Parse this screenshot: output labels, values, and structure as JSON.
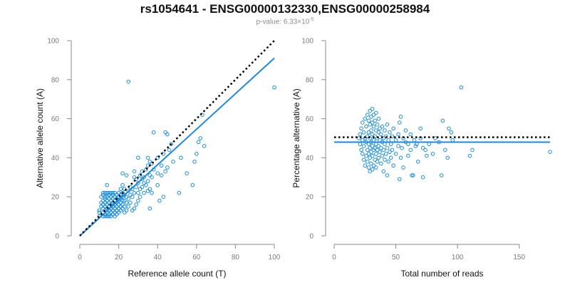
{
  "title": "rs1054641 - ENSG00000132330,ENSG00000258984",
  "subtitle": {
    "prefix": "p-value: 6.33×10",
    "exponent": "-5"
  },
  "colors": {
    "points": "#1b8ed8",
    "fit_line": "#1e88e5",
    "reference_line": "#000000",
    "axis": "#888888",
    "tick_text": "#7a7a7a",
    "label_text": "#111111"
  },
  "chart_data": [
    {
      "type": "scatter",
      "xlabel": "Reference allele count (T)",
      "ylabel": "Alternative allele count (A)",
      "xlim": [
        0,
        100
      ],
      "ylim": [
        0,
        100
      ],
      "xticks": [
        0,
        20,
        40,
        60,
        80,
        100
      ],
      "yticks": [
        0,
        20,
        40,
        60,
        80,
        100
      ],
      "grid": false,
      "lines": [
        {
          "kind": "fit",
          "style": "solid",
          "x": [
            0,
            100
          ],
          "y": [
            0,
            91
          ]
        },
        {
          "kind": "reference",
          "style": "dotted",
          "x": [
            0,
            100
          ],
          "y": [
            0,
            100
          ]
        }
      ],
      "points": [
        [
          10,
          10
        ],
        [
          10,
          12
        ],
        [
          10,
          13
        ],
        [
          11,
          15
        ],
        [
          11,
          17
        ],
        [
          11,
          20
        ],
        [
          12,
          10
        ],
        [
          12,
          12
        ],
        [
          12,
          14
        ],
        [
          12,
          16
        ],
        [
          12,
          18
        ],
        [
          12,
          21
        ],
        [
          12,
          22
        ],
        [
          13,
          10
        ],
        [
          13,
          11
        ],
        [
          13,
          13
        ],
        [
          13,
          15
        ],
        [
          13,
          17
        ],
        [
          13,
          19
        ],
        [
          13,
          20
        ],
        [
          13,
          22
        ],
        [
          14,
          10
        ],
        [
          14,
          12
        ],
        [
          14,
          14
        ],
        [
          14,
          16
        ],
        [
          14,
          18
        ],
        [
          14,
          20
        ],
        [
          14,
          22
        ],
        [
          14,
          26
        ],
        [
          15,
          10
        ],
        [
          15,
          11
        ],
        [
          15,
          13
        ],
        [
          15,
          15
        ],
        [
          15,
          17
        ],
        [
          15,
          19
        ],
        [
          15,
          21
        ],
        [
          15,
          22
        ],
        [
          16,
          10
        ],
        [
          16,
          12
        ],
        [
          16,
          14
        ],
        [
          16,
          16
        ],
        [
          16,
          18
        ],
        [
          16,
          20
        ],
        [
          16,
          22
        ],
        [
          17,
          11
        ],
        [
          17,
          13
        ],
        [
          17,
          15
        ],
        [
          17,
          17
        ],
        [
          17,
          19
        ],
        [
          17,
          21
        ],
        [
          17,
          22
        ],
        [
          18,
          10
        ],
        [
          18,
          12
        ],
        [
          18,
          14
        ],
        [
          18,
          16
        ],
        [
          18,
          18
        ],
        [
          18,
          20
        ],
        [
          18,
          22
        ],
        [
          19,
          11
        ],
        [
          19,
          13
        ],
        [
          19,
          15
        ],
        [
          19,
          17
        ],
        [
          19,
          19
        ],
        [
          19,
          21
        ],
        [
          20,
          12
        ],
        [
          20,
          14
        ],
        [
          20,
          16
        ],
        [
          20,
          18
        ],
        [
          20,
          20
        ],
        [
          20,
          22
        ],
        [
          21,
          13
        ],
        [
          21,
          15
        ],
        [
          21,
          17
        ],
        [
          21,
          19
        ],
        [
          21,
          21
        ],
        [
          21,
          24
        ],
        [
          22,
          14
        ],
        [
          22,
          16
        ],
        [
          22,
          18
        ],
        [
          22,
          20
        ],
        [
          22,
          22
        ],
        [
          22,
          26
        ],
        [
          22,
          32
        ],
        [
          23,
          12
        ],
        [
          23,
          15
        ],
        [
          23,
          18
        ],
        [
          23,
          21
        ],
        [
          23,
          24
        ],
        [
          24,
          13
        ],
        [
          24,
          17
        ],
        [
          24,
          20
        ],
        [
          24,
          31
        ],
        [
          25,
          15
        ],
        [
          25,
          19
        ],
        [
          25,
          23
        ],
        [
          25,
          79
        ],
        [
          26,
          17
        ],
        [
          26,
          21
        ],
        [
          26,
          25
        ],
        [
          27,
          13
        ],
        [
          27,
          20
        ],
        [
          27,
          24
        ],
        [
          28,
          14
        ],
        [
          28,
          22
        ],
        [
          28,
          30
        ],
        [
          28,
          33
        ],
        [
          29,
          16
        ],
        [
          29,
          25
        ],
        [
          29,
          29
        ],
        [
          30,
          18
        ],
        [
          30,
          22
        ],
        [
          30,
          27
        ],
        [
          30,
          40
        ],
        [
          31,
          20
        ],
        [
          31,
          24
        ],
        [
          31,
          31
        ],
        [
          32,
          25
        ],
        [
          32,
          29
        ],
        [
          32,
          33
        ],
        [
          33,
          22
        ],
        [
          33,
          27
        ],
        [
          33,
          30
        ],
        [
          34,
          26
        ],
        [
          34,
          34
        ],
        [
          35,
          23
        ],
        [
          35,
          28
        ],
        [
          35,
          36
        ],
        [
          35,
          40
        ],
        [
          36,
          14
        ],
        [
          36,
          24
        ],
        [
          36,
          31
        ],
        [
          36,
          38
        ],
        [
          37,
          22
        ],
        [
          37,
          30
        ],
        [
          37,
          37
        ],
        [
          38,
          34
        ],
        [
          38,
          53
        ],
        [
          40,
          26
        ],
        [
          40,
          32
        ],
        [
          40,
          40
        ],
        [
          41,
          18
        ],
        [
          42,
          31
        ],
        [
          42,
          36
        ],
        [
          43,
          20
        ],
        [
          43,
          42
        ],
        [
          44,
          33
        ],
        [
          44,
          53
        ],
        [
          45,
          35
        ],
        [
          45,
          52
        ],
        [
          46,
          44
        ],
        [
          47,
          47
        ],
        [
          48,
          38
        ],
        [
          51,
          22
        ],
        [
          52,
          40
        ],
        [
          55,
          32
        ],
        [
          58,
          26
        ],
        [
          59,
          38
        ],
        [
          60,
          42
        ],
        [
          61,
          48
        ],
        [
          62,
          50
        ],
        [
          63,
          62
        ],
        [
          64,
          46
        ],
        [
          100,
          76
        ]
      ]
    },
    {
      "type": "scatter",
      "xlabel": "Total number of reads",
      "ylabel": "Percentage alternative (A)",
      "xlim": [
        0,
        175
      ],
      "ylim": [
        0,
        100
      ],
      "xticks": [
        0,
        50,
        100,
        150
      ],
      "yticks": [
        0,
        20,
        40,
        60,
        80,
        100
      ],
      "grid": false,
      "lines": [
        {
          "kind": "fit",
          "style": "solid",
          "x": [
            0,
            175
          ],
          "y": [
            48,
            48
          ]
        },
        {
          "kind": "reference",
          "style": "dotted",
          "x": [
            0,
            175
          ],
          "y": [
            50.5,
            50.5
          ]
        }
      ],
      "points": [
        [
          20,
          50
        ],
        [
          21,
          47
        ],
        [
          21,
          52
        ],
        [
          22,
          44
        ],
        [
          22,
          55
        ],
        [
          23,
          42
        ],
        [
          23,
          49
        ],
        [
          23,
          58
        ],
        [
          24,
          39
        ],
        [
          24,
          46
        ],
        [
          24,
          53
        ],
        [
          25,
          36
        ],
        [
          25,
          50
        ],
        [
          25,
          60
        ],
        [
          26,
          41
        ],
        [
          26,
          48
        ],
        [
          26,
          56
        ],
        [
          27,
          38
        ],
        [
          27,
          44
        ],
        [
          27,
          51
        ],
        [
          27,
          62
        ],
        [
          28,
          35
        ],
        [
          28,
          42
        ],
        [
          28,
          47
        ],
        [
          28,
          53
        ],
        [
          28,
          59
        ],
        [
          29,
          33
        ],
        [
          29,
          40
        ],
        [
          29,
          45
        ],
        [
          29,
          50
        ],
        [
          29,
          57
        ],
        [
          29,
          64
        ],
        [
          30,
          37
        ],
        [
          30,
          43
        ],
        [
          30,
          48
        ],
        [
          30,
          54
        ],
        [
          30,
          61
        ],
        [
          31,
          34
        ],
        [
          31,
          41
        ],
        [
          31,
          46
        ],
        [
          31,
          52
        ],
        [
          31,
          58
        ],
        [
          31,
          65
        ],
        [
          32,
          36
        ],
        [
          32,
          44
        ],
        [
          32,
          49
        ],
        [
          32,
          56
        ],
        [
          32,
          62
        ],
        [
          33,
          39
        ],
        [
          33,
          45
        ],
        [
          33,
          51
        ],
        [
          33,
          59
        ],
        [
          34,
          35
        ],
        [
          34,
          42
        ],
        [
          34,
          47
        ],
        [
          34,
          54
        ],
        [
          34,
          63
        ],
        [
          35,
          38
        ],
        [
          35,
          44
        ],
        [
          35,
          50
        ],
        [
          35,
          57
        ],
        [
          36,
          40
        ],
        [
          36,
          46
        ],
        [
          36,
          53
        ],
        [
          36,
          60
        ],
        [
          37,
          43
        ],
        [
          37,
          49
        ],
        [
          37,
          55
        ],
        [
          38,
          37
        ],
        [
          38,
          45
        ],
        [
          38,
          52
        ],
        [
          39,
          41
        ],
        [
          39,
          48
        ],
        [
          39,
          56
        ],
        [
          40,
          33
        ],
        [
          40,
          44
        ],
        [
          40,
          50
        ],
        [
          41,
          39
        ],
        [
          41,
          47
        ],
        [
          41,
          54
        ],
        [
          42,
          42
        ],
        [
          42,
          51
        ],
        [
          43,
          31
        ],
        [
          43,
          45
        ],
        [
          43,
          57
        ],
        [
          44,
          38
        ],
        [
          44,
          49
        ],
        [
          45,
          43
        ],
        [
          45,
          53
        ],
        [
          46,
          40
        ],
        [
          46,
          47
        ],
        [
          47,
          44
        ],
        [
          47,
          51
        ],
        [
          48,
          36
        ],
        [
          48,
          55
        ],
        [
          50,
          42
        ],
        [
          50,
          49
        ],
        [
          52,
          46
        ],
        [
          52,
          52
        ],
        [
          53,
          29
        ],
        [
          53,
          58
        ],
        [
          54,
          40
        ],
        [
          54,
          61
        ],
        [
          55,
          45
        ],
        [
          56,
          35
        ],
        [
          56,
          50
        ],
        [
          58,
          48
        ],
        [
          58,
          54
        ],
        [
          60,
          41
        ],
        [
          60,
          47
        ],
        [
          62,
          44
        ],
        [
          62,
          52
        ],
        [
          63,
          31
        ],
        [
          64,
          31
        ],
        [
          65,
          49
        ],
        [
          66,
          46
        ],
        [
          67,
          47
        ],
        [
          68,
          38
        ],
        [
          70,
          50
        ],
        [
          70,
          55
        ],
        [
          72,
          30
        ],
        [
          72,
          45
        ],
        [
          74,
          44
        ],
        [
          75,
          41
        ],
        [
          77,
          47
        ],
        [
          80,
          42
        ],
        [
          82,
          50
        ],
        [
          85,
          48
        ],
        [
          87,
          31
        ],
        [
          88,
          59
        ],
        [
          90,
          44
        ],
        [
          92,
          40
        ],
        [
          93,
          55
        ],
        [
          95,
          53
        ],
        [
          96,
          49
        ],
        [
          103,
          76
        ],
        [
          110,
          41
        ],
        [
          112,
          44
        ],
        [
          175,
          43
        ]
      ]
    }
  ]
}
